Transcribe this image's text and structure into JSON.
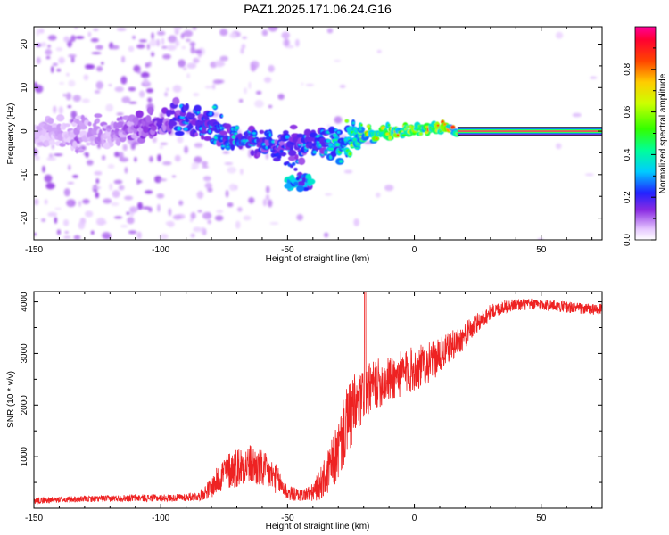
{
  "title": "PAZ1.2025.171.06.24.G16",
  "chart_data": [
    {
      "type": "heatmap",
      "xlabel": "Height of straight line (km)",
      "ylabel": "Frequency (Hz)",
      "xlim": [
        -150,
        74
      ],
      "ylim": [
        -25,
        24
      ],
      "x_ticks": [
        -150,
        -100,
        -50,
        0,
        50
      ],
      "y_ticks": [
        20,
        10,
        0,
        -10,
        -20
      ],
      "colorbar": {
        "label": "Normalized spectral amplitude",
        "range": [
          0,
          1
        ],
        "ticks": [
          0.0,
          0.2,
          0.4,
          0.6,
          0.8
        ],
        "colormap": "hsv-rainbow (white-purple-blue-cyan-green-yellow-orange-red-magenta)"
      },
      "ridge": {
        "x": [
          -150,
          -120,
          -100,
          -90,
          -80,
          -70,
          -60,
          -50,
          -40,
          -30,
          -20,
          -10,
          0,
          10,
          17,
          74
        ],
        "frequency": [
          -1,
          0,
          2,
          3,
          1,
          -2,
          -2,
          -3,
          -3,
          -3,
          -1,
          0,
          0,
          1,
          0.5,
          0.2
        ],
        "amplitude": [
          0.08,
          0.12,
          0.2,
          0.3,
          0.3,
          0.35,
          0.3,
          0.25,
          0.3,
          0.4,
          0.65,
          0.75,
          0.75,
          0.7,
          0.7,
          1.0
        ]
      },
      "secondary_feature": {
        "x": [
          -50,
          -40
        ],
        "frequency": [
          -12,
          -11
        ],
        "amplitude": 0.3
      },
      "grid": false
    },
    {
      "type": "line",
      "xlabel": "Height of straight line (km)",
      "ylabel": "SNR (10 * v/v)",
      "xlim": [
        -150,
        74
      ],
      "ylim": [
        0,
        4200
      ],
      "x_ticks": [
        -150,
        -100,
        -50,
        0,
        50
      ],
      "y_ticks": [
        1000,
        2000,
        3000,
        4000
      ],
      "color": "#ee2222",
      "series": [
        {
          "x": [
            -150,
            -130,
            -110,
            -95,
            -85,
            -80,
            -75,
            -70,
            -65,
            -60,
            -55,
            -50,
            -45,
            -40,
            -35,
            -30,
            -27,
            -24,
            -22,
            -20,
            -18,
            -15,
            -10,
            -5,
            0,
            5,
            10,
            15,
            20,
            25,
            30,
            35,
            40,
            50,
            60,
            70,
            74
          ],
          "values": [
            150,
            180,
            200,
            200,
            230,
            400,
            700,
            800,
            850,
            750,
            600,
            300,
            250,
            300,
            600,
            1100,
            1600,
            1900,
            2000,
            2200,
            2300,
            2400,
            2500,
            2600,
            2700,
            2800,
            2950,
            3150,
            3350,
            3600,
            3800,
            3900,
            3950,
            3950,
            3900,
            3850,
            3850
          ],
          "noise": [
            60,
            60,
            70,
            70,
            90,
            200,
            350,
            400,
            400,
            380,
            300,
            150,
            120,
            180,
            400,
            600,
            700,
            700,
            600,
            500,
            500,
            500,
            450,
            450,
            450,
            400,
            350,
            300,
            250,
            200,
            150,
            130,
            120,
            110,
            110,
            110,
            110
          ]
        }
      ],
      "grid": false
    }
  ]
}
